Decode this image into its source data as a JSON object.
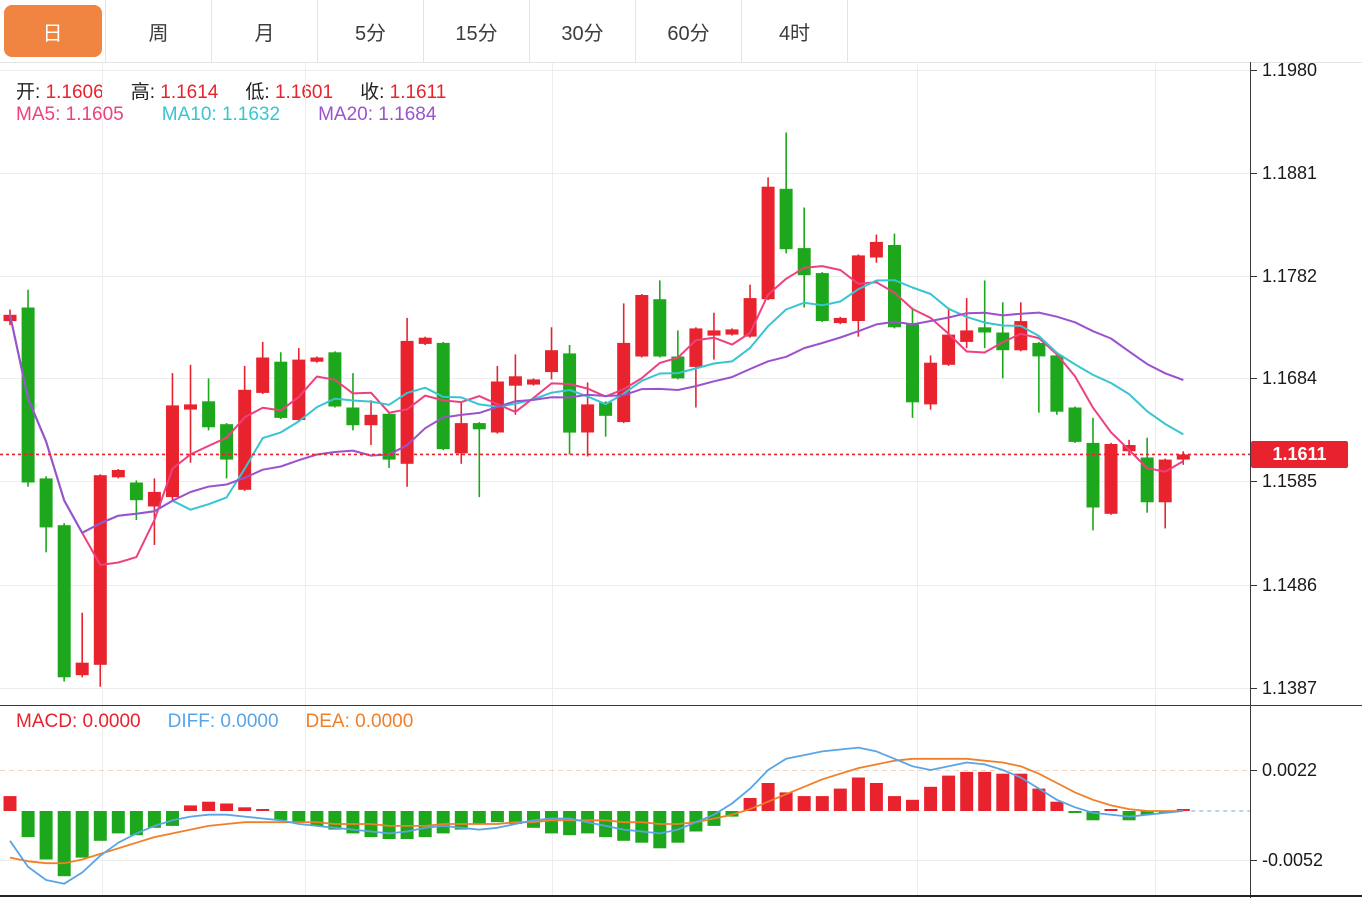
{
  "tabs": {
    "items": [
      {
        "name": "tab-day",
        "label": "日",
        "active": true
      },
      {
        "name": "tab-week",
        "label": "周",
        "active": false
      },
      {
        "name": "tab-month",
        "label": "月",
        "active": false
      },
      {
        "name": "tab-5min",
        "label": "5分",
        "active": false
      },
      {
        "name": "tab-15min",
        "label": "15分",
        "active": false
      },
      {
        "name": "tab-30min",
        "label": "30分",
        "active": false
      },
      {
        "name": "tab-60min",
        "label": "60分",
        "active": false
      },
      {
        "name": "tab-4hour",
        "label": "4时",
        "active": false
      }
    ]
  },
  "legend": {
    "ohlc": [
      {
        "name": "open",
        "label": "开:",
        "value": "1.1606"
      },
      {
        "name": "high",
        "label": "高:",
        "value": "1.1614"
      },
      {
        "name": "low",
        "label": "低:",
        "value": "1.1601"
      },
      {
        "name": "close",
        "label": "收:",
        "value": "1.1611"
      }
    ],
    "ma": [
      {
        "name": "ma5",
        "label": "MA5:",
        "value": "1.1605",
        "color": "#ee4080"
      },
      {
        "name": "ma10",
        "label": "MA10:",
        "value": "1.1632",
        "color": "#38c5d2"
      },
      {
        "name": "ma20",
        "label": "MA20:",
        "value": "1.1684",
        "color": "#9b52cc"
      }
    ],
    "macd": [
      {
        "name": "macd",
        "label": "MACD:",
        "value": "0.0000",
        "color": "#e8232e"
      },
      {
        "name": "diff",
        "label": "DIFF:",
        "value": "0.0000",
        "color": "#58a6e8"
      },
      {
        "name": "dea",
        "label": "DEA:",
        "value": "0.0000",
        "color": "#f07f28"
      }
    ]
  },
  "price_axis": {
    "current_price": "1.1611"
  },
  "colors": {
    "up": "#e8232e",
    "down": "#1ca71c",
    "tab_active_bg": "#ef8540",
    "ma5": "#ee4080",
    "ma10": "#38c5d2",
    "ma20": "#9b52cc",
    "diff_line": "#5aa4e6",
    "dea_line": "#f07f28",
    "price_line": "#e8232e",
    "badge_bg": "#e8232e",
    "badge_text": "#ffffff",
    "grid": "#ededed"
  },
  "chart_data": {
    "type": "candlestick",
    "convention": "red = up candle, green = down candle (Chinese style)",
    "title": "Daily candlestick chart with MA5/MA10/MA20 overlays and MACD sub-panel",
    "columns": [
      "open",
      "high",
      "low",
      "close"
    ],
    "candles": [
      [
        1.1739,
        1.175,
        1.1735,
        1.1745
      ],
      [
        1.1752,
        1.1769,
        1.158,
        1.1584
      ],
      [
        1.1588,
        1.159,
        1.1517,
        1.1541
      ],
      [
        1.1543,
        1.1545,
        1.1393,
        1.1397
      ],
      [
        1.1399,
        1.1459,
        1.1397,
        1.1411
      ],
      [
        1.1409,
        1.1592,
        1.1388,
        1.1591
      ],
      [
        1.1589,
        1.1597,
        1.1588,
        1.1596
      ],
      [
        1.1584,
        1.1586,
        1.1548,
        1.1567
      ],
      [
        1.1561,
        1.1588,
        1.1524,
        1.1575
      ],
      [
        1.157,
        1.1689,
        1.1567,
        1.1658
      ],
      [
        1.1654,
        1.1697,
        1.1603,
        1.1659
      ],
      [
        1.1662,
        1.1684,
        1.1634,
        1.1637
      ],
      [
        1.164,
        1.1641,
        1.1588,
        1.1606
      ],
      [
        1.1577,
        1.1696,
        1.1576,
        1.1673
      ],
      [
        1.167,
        1.1719,
        1.1669,
        1.1704
      ],
      [
        1.17,
        1.1709,
        1.1645,
        1.1646
      ],
      [
        1.1644,
        1.1713,
        1.1643,
        1.1702
      ],
      [
        1.17,
        1.1705,
        1.1699,
        1.1704
      ],
      [
        1.1709,
        1.171,
        1.1656,
        1.1657
      ],
      [
        1.1656,
        1.1689,
        1.1634,
        1.1639
      ],
      [
        1.1639,
        1.1663,
        1.162,
        1.1649
      ],
      [
        1.165,
        1.1651,
        1.1598,
        1.1606
      ],
      [
        1.1602,
        1.1742,
        1.158,
        1.172
      ],
      [
        1.1717,
        1.1724,
        1.1716,
        1.1723
      ],
      [
        1.1718,
        1.1719,
        1.1615,
        1.1616
      ],
      [
        1.1612,
        1.1662,
        1.1602,
        1.1641
      ],
      [
        1.1641,
        1.1642,
        1.157,
        1.1635
      ],
      [
        1.1632,
        1.1696,
        1.1631,
        1.1681
      ],
      [
        1.1677,
        1.1707,
        1.1649,
        1.1686
      ],
      [
        1.1678,
        1.1684,
        1.1677,
        1.1683
      ],
      [
        1.169,
        1.1733,
        1.1683,
        1.1711
      ],
      [
        1.1708,
        1.1716,
        1.1611,
        1.1632
      ],
      [
        1.1632,
        1.168,
        1.1609,
        1.1659
      ],
      [
        1.1661,
        1.1662,
        1.1628,
        1.1648
      ],
      [
        1.1642,
        1.1756,
        1.1641,
        1.1718
      ],
      [
        1.1705,
        1.1765,
        1.1704,
        1.1764
      ],
      [
        1.176,
        1.1778,
        1.1704,
        1.1705
      ],
      [
        1.1705,
        1.173,
        1.1683,
        1.1684
      ],
      [
        1.1695,
        1.1733,
        1.1656,
        1.1732
      ],
      [
        1.1725,
        1.1747,
        1.1702,
        1.173
      ],
      [
        1.1726,
        1.1732,
        1.1725,
        1.1731
      ],
      [
        1.1724,
        1.1774,
        1.1723,
        1.1761
      ],
      [
        1.176,
        1.1877,
        1.1759,
        1.1868
      ],
      [
        1.1866,
        1.192,
        1.1804,
        1.1808
      ],
      [
        1.1809,
        1.1848,
        1.1752,
        1.1783
      ],
      [
        1.1785,
        1.1786,
        1.1738,
        1.1739
      ],
      [
        1.1737,
        1.1743,
        1.1736,
        1.1742
      ],
      [
        1.1739,
        1.1803,
        1.1724,
        1.1802
      ],
      [
        1.18,
        1.1822,
        1.1795,
        1.1815
      ],
      [
        1.1812,
        1.1823,
        1.1732,
        1.1733
      ],
      [
        1.1737,
        1.1752,
        1.1646,
        1.1661
      ],
      [
        1.1659,
        1.1706,
        1.1654,
        1.1699
      ],
      [
        1.1697,
        1.1752,
        1.1696,
        1.1726
      ],
      [
        1.1719,
        1.1761,
        1.1713,
        1.173
      ],
      [
        1.1733,
        1.1778,
        1.1713,
        1.1728
      ],
      [
        1.1728,
        1.1757,
        1.1684,
        1.1711
      ],
      [
        1.1711,
        1.1757,
        1.171,
        1.1739
      ],
      [
        1.1718,
        1.1719,
        1.1651,
        1.1705
      ],
      [
        1.1706,
        1.1707,
        1.1649,
        1.1652
      ],
      [
        1.1656,
        1.1657,
        1.1622,
        1.1623
      ],
      [
        1.1622,
        1.1646,
        1.1538,
        1.156
      ],
      [
        1.1554,
        1.1622,
        1.1553,
        1.1621
      ],
      [
        1.1614,
        1.1625,
        1.161,
        1.162
      ],
      [
        1.1608,
        1.1627,
        1.1555,
        1.1565
      ],
      [
        1.1565,
        1.1607,
        1.154,
        1.1606
      ],
      [
        1.1606,
        1.1614,
        1.1601,
        1.1611
      ]
    ],
    "overlays": [
      {
        "name": "MA5",
        "period": 5,
        "color": "#ee4080",
        "last_value": 1.1605
      },
      {
        "name": "MA10",
        "period": 10,
        "color": "#38c5d2",
        "last_value": 1.1632
      },
      {
        "name": "MA20",
        "period": 20,
        "color": "#9b52cc",
        "last_value": 1.1684
      }
    ],
    "y_axis": {
      "ticks": [
        1.198,
        1.1881,
        1.1782,
        1.1684,
        1.1585,
        1.1486,
        1.1387
      ],
      "current_price": 1.1611
    },
    "macd": {
      "ticks": [
        0.0022,
        -0.0052
      ],
      "hist": [
        0.0008,
        -0.0014,
        -0.0026,
        -0.0035,
        -0.0025,
        -0.0016,
        -0.0012,
        -0.0013,
        -0.0009,
        -0.0008,
        0.0003,
        0.0005,
        0.0004,
        0.0002,
        0.0001,
        -0.0005,
        -0.0006,
        -0.0008,
        -0.001,
        -0.0012,
        -0.0014,
        -0.0015,
        -0.0015,
        -0.0014,
        -0.0012,
        -0.001,
        -0.0007,
        -0.0006,
        -0.0007,
        -0.0009,
        -0.0012,
        -0.0013,
        -0.0012,
        -0.0014,
        -0.0016,
        -0.0017,
        -0.002,
        -0.0017,
        -0.0011,
        -0.0008,
        -0.0003,
        0.0007,
        0.0015,
        0.001,
        0.0008,
        0.0008,
        0.0012,
        0.0018,
        0.0015,
        0.0008,
        0.0006,
        0.0013,
        0.0019,
        0.0021,
        0.0021,
        0.002,
        0.002,
        0.0012,
        0.0005,
        -0.0001,
        -0.0005,
        0.0001,
        -0.0005,
        -0.0002,
        -0.0001,
        0.0
      ],
      "diff": [
        -0.0016,
        -0.003,
        -0.0037,
        -0.0039,
        -0.0033,
        -0.0024,
        -0.0017,
        -0.0012,
        -0.0008,
        -0.0005,
        -0.0003,
        -0.0002,
        -0.0002,
        -0.0003,
        -0.0004,
        -0.0005,
        -0.0007,
        -0.0008,
        -0.0009,
        -0.001,
        -0.0011,
        -0.0012,
        -0.0011,
        -0.0009,
        -0.0008,
        -0.0009,
        -0.001,
        -0.0009,
        -0.0007,
        -0.0005,
        -0.0004,
        -0.0004,
        -0.0006,
        -0.0008,
        -0.001,
        -0.0011,
        -0.0012,
        -0.001,
        -0.0006,
        -0.0002,
        0.0004,
        0.0012,
        0.0022,
        0.0028,
        0.003,
        0.0032,
        0.0033,
        0.0034,
        0.0032,
        0.0028,
        0.0024,
        0.0022,
        0.0024,
        0.0026,
        0.0025,
        0.0022,
        0.0018,
        0.0012,
        0.0006,
        0.0002,
        -0.0001,
        -0.0002,
        -0.0003,
        -0.0002,
        -0.0001,
        0.0
      ],
      "dea": [
        -0.0025,
        -0.0027,
        -0.0028,
        -0.0028,
        -0.0026,
        -0.0023,
        -0.002,
        -0.0017,
        -0.0014,
        -0.0012,
        -0.001,
        -0.0008,
        -0.0007,
        -0.0006,
        -0.0006,
        -0.0006,
        -0.0006,
        -0.0006,
        -0.0007,
        -0.0007,
        -0.0007,
        -0.0008,
        -0.0008,
        -0.0008,
        -0.0007,
        -0.0007,
        -0.0007,
        -0.0007,
        -0.0006,
        -0.0006,
        -0.0005,
        -0.0005,
        -0.0005,
        -0.0005,
        -0.0006,
        -0.0006,
        -0.0007,
        -0.0007,
        -0.0006,
        -0.0004,
        -0.0002,
        0.0001,
        0.0005,
        0.0009,
        0.0013,
        0.0017,
        0.002,
        0.0023,
        0.0025,
        0.0027,
        0.0028,
        0.0028,
        0.0028,
        0.0028,
        0.0027,
        0.0026,
        0.0024,
        0.002,
        0.0015,
        0.001,
        0.0006,
        0.0003,
        0.0001,
        0.0,
        0.0,
        0.0
      ]
    }
  }
}
